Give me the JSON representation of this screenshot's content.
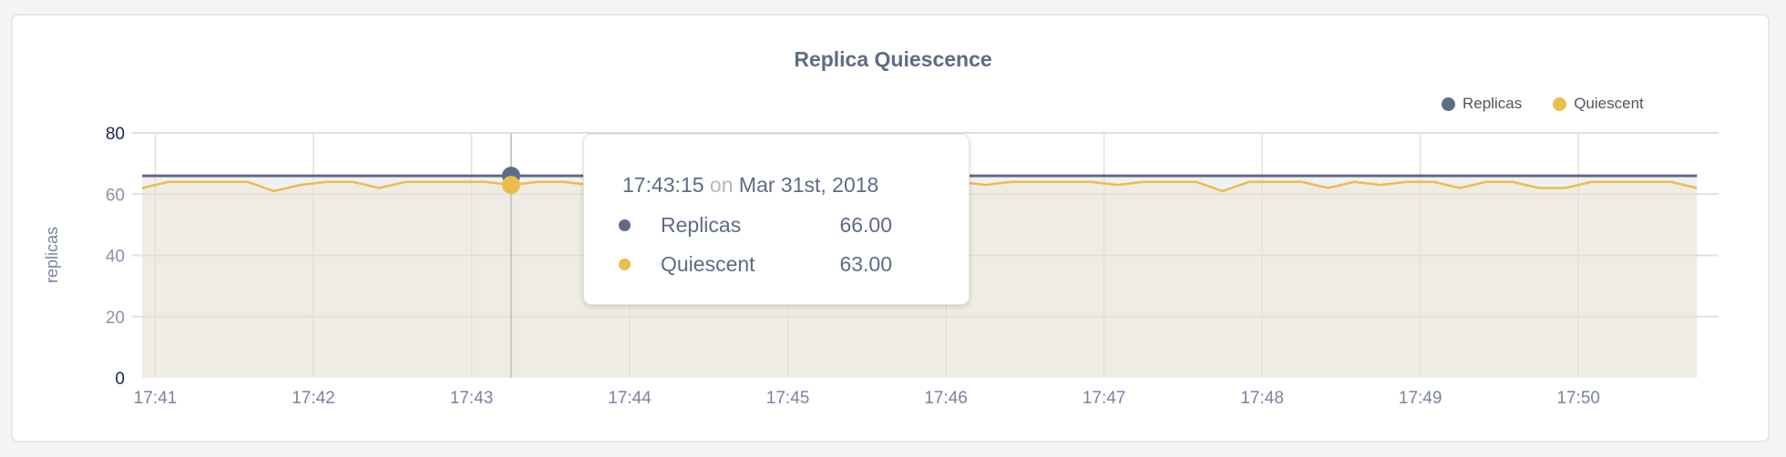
{
  "chart_data": {
    "type": "area",
    "title": "Replica Quiescence",
    "ylabel": "replicas",
    "xlabel": "",
    "ylim": [
      0,
      80
    ],
    "yticks": [
      "0",
      "20",
      "40",
      "60",
      "80"
    ],
    "xticks": [
      "17:41",
      "17:42",
      "17:43",
      "17:44",
      "17:45",
      "17:46",
      "17:47",
      "17:48",
      "17:49",
      "17:50"
    ],
    "xrange": [
      "17:40:55",
      "17:50:48"
    ],
    "grid": true,
    "legend_position": "top-right",
    "x_start": "17:40:55",
    "x_step_seconds": 10,
    "series": [
      {
        "name": "Replicas",
        "color": "#5f6b86",
        "values": [
          66,
          66,
          66,
          66,
          66,
          66,
          66,
          66,
          66,
          66,
          66,
          66,
          66,
          66,
          66,
          66,
          66,
          66,
          66,
          66,
          66,
          66,
          66,
          66,
          66,
          66,
          66,
          66,
          66,
          66,
          66,
          66,
          66,
          66,
          66,
          66,
          66,
          66,
          66,
          66,
          66,
          66,
          66,
          66,
          66,
          66,
          66,
          66,
          66,
          66,
          66,
          66,
          66,
          66,
          66,
          66,
          66,
          66,
          66,
          66
        ]
      },
      {
        "name": "Quiescent",
        "color": "#ebbd4c",
        "values": [
          62,
          64,
          64,
          64,
          64,
          61,
          63,
          64,
          64,
          62,
          64,
          64,
          64,
          64,
          63,
          64,
          64,
          63,
          64,
          64,
          64,
          64,
          64,
          64,
          64,
          64,
          64,
          64,
          64,
          64,
          64,
          64,
          63,
          64,
          64,
          64,
          64,
          63,
          64,
          64,
          64,
          61,
          64,
          64,
          64,
          62,
          64,
          63,
          64,
          64,
          62,
          64,
          64,
          62,
          62,
          64,
          64,
          64,
          64,
          62
        ]
      }
    ],
    "tooltip": {
      "time": "17:43:15",
      "on": "on",
      "date": "Mar 31st, 2018",
      "rows": [
        {
          "label": "Replicas",
          "value": "66.00",
          "color": "#5f6b86"
        },
        {
          "label": "Quiescent",
          "value": "63.00",
          "color": "#ebbd4c"
        }
      ],
      "hover_index": 14
    }
  }
}
